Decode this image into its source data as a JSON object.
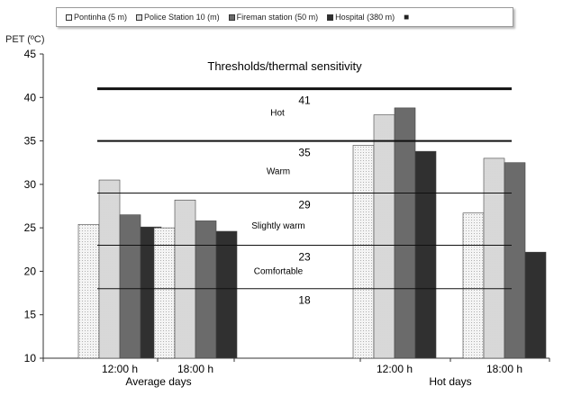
{
  "chart_data": {
    "type": "bar",
    "ylabel": "PET (ºC)",
    "ylim": [
      10,
      45
    ],
    "yticks": [
      10,
      15,
      20,
      25,
      30,
      35,
      40,
      45
    ],
    "groups": [
      {
        "categories": [
          "12:00 h",
          "18:00 h"
        ],
        "group_label": "Average days"
      },
      {
        "categories": [
          "12:00 h",
          "18:00 h"
        ],
        "group_label": "Hot days"
      }
    ],
    "categories": [
      "12:00 h",
      "18:00 h",
      "12:00 h",
      "18:00 h"
    ],
    "series": [
      {
        "name": "Pontinha (5 m)",
        "color": "#f2f2f2",
        "values": [
          25.4,
          25.0,
          34.5,
          26.7
        ]
      },
      {
        "name": "Police Station 10 (m)",
        "color": "#d9d9d9",
        "values": [
          30.5,
          28.2,
          38.0,
          33.0
        ]
      },
      {
        "name": "Fireman station (50 m)",
        "color": "#6b6b6b",
        "values": [
          26.5,
          25.8,
          38.8,
          32.5
        ]
      },
      {
        "name": "Hospital (380 m)",
        "color": "#303030",
        "values": [
          25.1,
          24.6,
          33.8,
          22.2
        ]
      }
    ],
    "legend_extra_marker": "■",
    "annotation_title": "Thresholds/thermal sensitivity",
    "thresholds": [
      {
        "value": 41,
        "label": "41",
        "weight": "thick"
      },
      {
        "value": 35,
        "label": "35",
        "weight": "medium"
      },
      {
        "value": 29,
        "label": "29",
        "weight": "thin"
      },
      {
        "value": 23,
        "label": "23",
        "weight": "thin"
      },
      {
        "value": 18,
        "label": "18",
        "weight": "thin"
      }
    ],
    "zones": [
      {
        "label": "Hot",
        "center": 38.3
      },
      {
        "label": "Warm",
        "center": 31.6
      },
      {
        "label": "Slightly warm",
        "center": 25.3
      },
      {
        "label": "Comfortable",
        "center": 20.1
      }
    ],
    "legend_position": "top",
    "grid": false
  }
}
